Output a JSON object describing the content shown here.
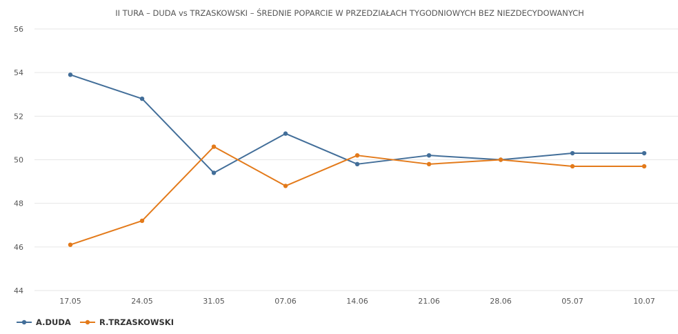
{
  "chart_data": {
    "type": "line",
    "title": "II TURA – DUDA vs TRZASKOWSKI – ŚREDNIE POPARCIE W PRZEDZIAŁACH TYGODNIOWYCH BEZ NIEZDECYDOWANYCH",
    "categories": [
      "17.05",
      "24.05",
      "31.05",
      "07.06",
      "14.06",
      "21.06",
      "28.06",
      "05.07",
      "10.07"
    ],
    "ylim": [
      44,
      56
    ],
    "yticks": [
      "44",
      "46",
      "48",
      "50",
      "52",
      "54",
      "56"
    ],
    "grid": true,
    "legend_position": "bottom-left",
    "series": [
      {
        "name": "A.DUDA",
        "color": "#426e99",
        "values": [
          53.9,
          52.8,
          49.4,
          51.2,
          49.8,
          50.2,
          50.0,
          50.3,
          50.3
        ]
      },
      {
        "name": "R.TRZASKOWSKI",
        "color": "#e37a1a",
        "values": [
          46.1,
          47.2,
          50.6,
          48.8,
          50.2,
          49.8,
          50.0,
          49.7,
          49.7
        ]
      }
    ]
  }
}
